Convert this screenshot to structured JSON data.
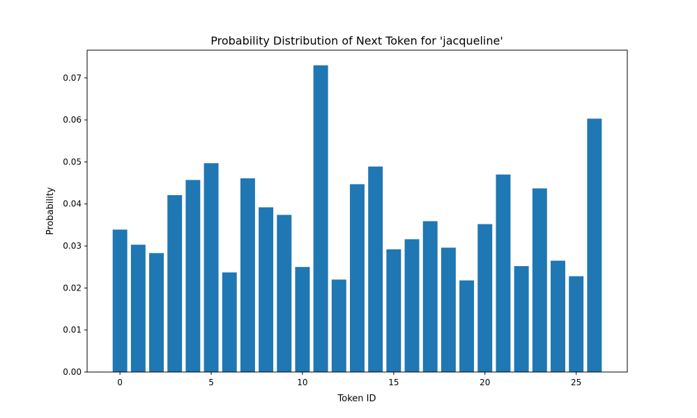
{
  "chart_data": {
    "type": "bar",
    "title": "Probability Distribution of Next Token for 'jacqueline'",
    "xlabel": "Token ID",
    "ylabel": "Probability",
    "bar_color": "#1f77b4",
    "categories": [
      0,
      1,
      2,
      3,
      4,
      5,
      6,
      7,
      8,
      9,
      10,
      11,
      12,
      13,
      14,
      15,
      16,
      17,
      18,
      19,
      20,
      21,
      22,
      23,
      24,
      25,
      26
    ],
    "values": [
      0.0339,
      0.0303,
      0.0283,
      0.0421,
      0.0457,
      0.0497,
      0.0237,
      0.0461,
      0.0392,
      0.0374,
      0.025,
      0.073,
      0.022,
      0.0447,
      0.0489,
      0.0292,
      0.0316,
      0.0359,
      0.0296,
      0.0218,
      0.0352,
      0.047,
      0.0252,
      0.0437,
      0.0265,
      0.0228,
      0.0603
    ],
    "xlim": [
      -1.8,
      27.8
    ],
    "ylim": [
      0,
      0.0766
    ],
    "x_ticks": [
      0,
      5,
      10,
      15,
      20,
      25
    ],
    "y_ticks": [
      "0.00",
      "0.01",
      "0.02",
      "0.03",
      "0.04",
      "0.05",
      "0.06",
      "0.07"
    ],
    "grid": false,
    "legend": false
  }
}
